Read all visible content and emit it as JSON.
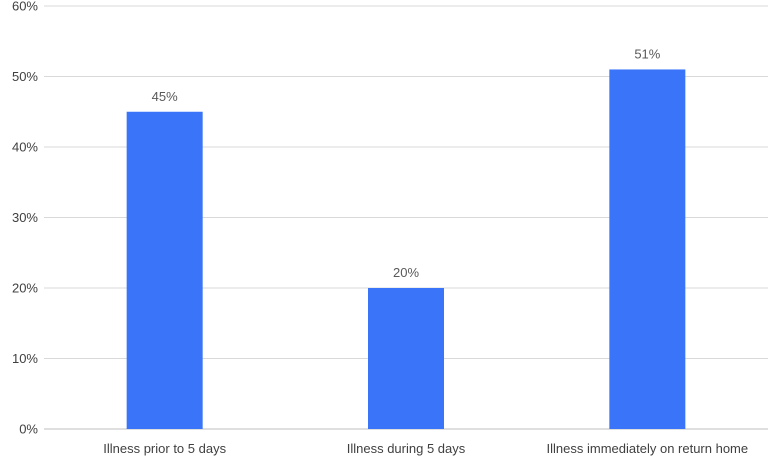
{
  "chart_data": {
    "type": "bar",
    "title": "",
    "xlabel": "",
    "ylabel": "",
    "categories": [
      "Illness prior to 5 days",
      "Illness during 5 days",
      "Illness immediately on return home"
    ],
    "values": [
      45,
      20,
      51
    ],
    "data_labels": [
      "45%",
      "20%",
      "51%"
    ],
    "ylim": [
      0,
      60
    ],
    "yticks": [
      0,
      10,
      20,
      30,
      40,
      50,
      60
    ],
    "ytick_labels": [
      "0%",
      "10%",
      "20%",
      "30%",
      "40%",
      "50%",
      "60%"
    ],
    "grid": true,
    "legend": "none",
    "bar_color": "#3a75f9"
  }
}
